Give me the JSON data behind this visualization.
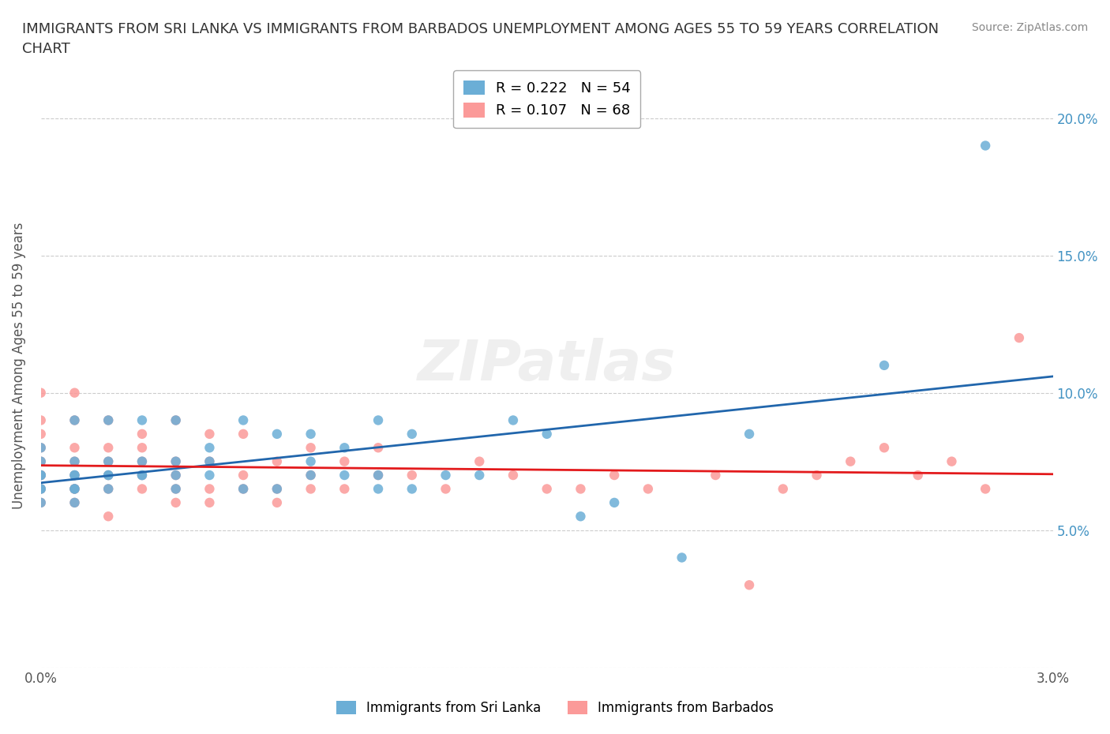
{
  "title": "IMMIGRANTS FROM SRI LANKA VS IMMIGRANTS FROM BARBADOS UNEMPLOYMENT AMONG AGES 55 TO 59 YEARS CORRELATION\nCHART",
  "source": "Source: ZipAtlas.com",
  "xlabel": "",
  "ylabel": "Unemployment Among Ages 55 to 59 years",
  "xlim": [
    0.0,
    0.03
  ],
  "ylim": [
    0.0,
    0.22
  ],
  "x_ticks": [
    0.0,
    0.005,
    0.01,
    0.015,
    0.02,
    0.025,
    0.03
  ],
  "x_tick_labels": [
    "0.0%",
    "",
    "",
    "",
    "",
    "",
    "3.0%"
  ],
  "y_ticks": [
    0.0,
    0.05,
    0.1,
    0.15,
    0.2
  ],
  "y_tick_labels": [
    "",
    "5.0%",
    "10.0%",
    "15.0%",
    "20.0%"
  ],
  "sri_lanka_color": "#6baed6",
  "barbados_color": "#fb9a99",
  "sri_lanka_R": 0.222,
  "sri_lanka_N": 54,
  "barbados_R": 0.107,
  "barbados_N": 68,
  "sri_lanka_line_color": "#2166ac",
  "barbados_line_color": "#e31a1c",
  "watermark": "ZIPatlas",
  "background_color": "#ffffff",
  "grid_color": "#cccccc",
  "legend_R_color_sri": "#4393c3",
  "legend_R_color_bar": "#f4a582",
  "sri_lanka_x": [
    0.0,
    0.0,
    0.0,
    0.0,
    0.0,
    0.0,
    0.0,
    0.001,
    0.001,
    0.001,
    0.001,
    0.001,
    0.001,
    0.001,
    0.002,
    0.002,
    0.002,
    0.002,
    0.002,
    0.003,
    0.003,
    0.003,
    0.003,
    0.004,
    0.004,
    0.004,
    0.004,
    0.005,
    0.005,
    0.005,
    0.006,
    0.006,
    0.007,
    0.007,
    0.008,
    0.008,
    0.008,
    0.009,
    0.009,
    0.01,
    0.01,
    0.01,
    0.011,
    0.011,
    0.012,
    0.013,
    0.014,
    0.015,
    0.016,
    0.017,
    0.019,
    0.021,
    0.025,
    0.028
  ],
  "sri_lanka_y": [
    0.06,
    0.065,
    0.065,
    0.07,
    0.07,
    0.075,
    0.08,
    0.06,
    0.065,
    0.065,
    0.07,
    0.07,
    0.075,
    0.09,
    0.065,
    0.07,
    0.07,
    0.075,
    0.09,
    0.07,
    0.07,
    0.075,
    0.09,
    0.065,
    0.07,
    0.075,
    0.09,
    0.07,
    0.075,
    0.08,
    0.065,
    0.09,
    0.065,
    0.085,
    0.07,
    0.075,
    0.085,
    0.07,
    0.08,
    0.065,
    0.07,
    0.09,
    0.065,
    0.085,
    0.07,
    0.07,
    0.09,
    0.085,
    0.055,
    0.06,
    0.04,
    0.085,
    0.11,
    0.19
  ],
  "barbados_x": [
    0.0,
    0.0,
    0.0,
    0.0,
    0.0,
    0.0,
    0.0,
    0.0,
    0.0,
    0.001,
    0.001,
    0.001,
    0.001,
    0.001,
    0.001,
    0.001,
    0.001,
    0.002,
    0.002,
    0.002,
    0.002,
    0.002,
    0.002,
    0.003,
    0.003,
    0.003,
    0.003,
    0.003,
    0.004,
    0.004,
    0.004,
    0.004,
    0.004,
    0.005,
    0.005,
    0.005,
    0.005,
    0.006,
    0.006,
    0.006,
    0.007,
    0.007,
    0.007,
    0.008,
    0.008,
    0.008,
    0.009,
    0.009,
    0.01,
    0.01,
    0.011,
    0.012,
    0.013,
    0.014,
    0.015,
    0.016,
    0.017,
    0.018,
    0.02,
    0.021,
    0.022,
    0.023,
    0.024,
    0.025,
    0.026,
    0.027,
    0.028,
    0.029
  ],
  "barbados_y": [
    0.06,
    0.065,
    0.07,
    0.07,
    0.075,
    0.08,
    0.085,
    0.09,
    0.1,
    0.06,
    0.065,
    0.065,
    0.07,
    0.075,
    0.08,
    0.09,
    0.1,
    0.055,
    0.065,
    0.07,
    0.075,
    0.08,
    0.09,
    0.065,
    0.07,
    0.075,
    0.08,
    0.085,
    0.06,
    0.065,
    0.07,
    0.075,
    0.09,
    0.06,
    0.065,
    0.075,
    0.085,
    0.065,
    0.07,
    0.085,
    0.06,
    0.065,
    0.075,
    0.065,
    0.07,
    0.08,
    0.065,
    0.075,
    0.07,
    0.08,
    0.07,
    0.065,
    0.075,
    0.07,
    0.065,
    0.065,
    0.07,
    0.065,
    0.07,
    0.03,
    0.065,
    0.07,
    0.075,
    0.08,
    0.07,
    0.075,
    0.065,
    0.12
  ]
}
